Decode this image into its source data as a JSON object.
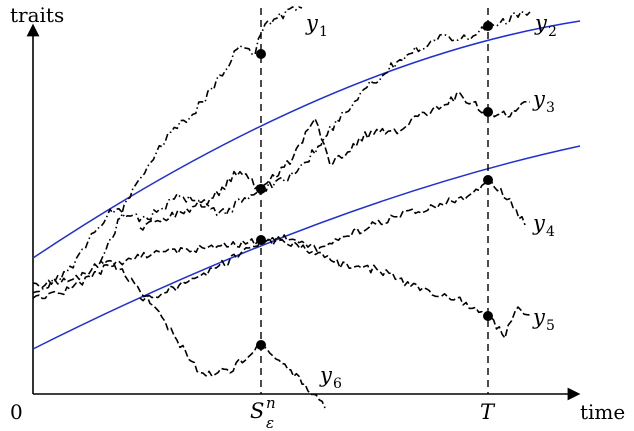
{
  "axes": {
    "y_label": "traits",
    "x_label": "time",
    "origin_label": "0"
  },
  "markers": {
    "s_main": "S",
    "s_sup": "n",
    "s_sub": "ε",
    "t_label": "T"
  },
  "curves": [
    {
      "main": "y",
      "sub": "1"
    },
    {
      "main": "y",
      "sub": "2"
    },
    {
      "main": "y",
      "sub": "3"
    },
    {
      "main": "y",
      "sub": "4"
    },
    {
      "main": "y",
      "sub": "5"
    },
    {
      "main": "y",
      "sub": "6"
    }
  ],
  "colors": {
    "boundary": "#1f2fd6",
    "paths": "#000000"
  }
}
